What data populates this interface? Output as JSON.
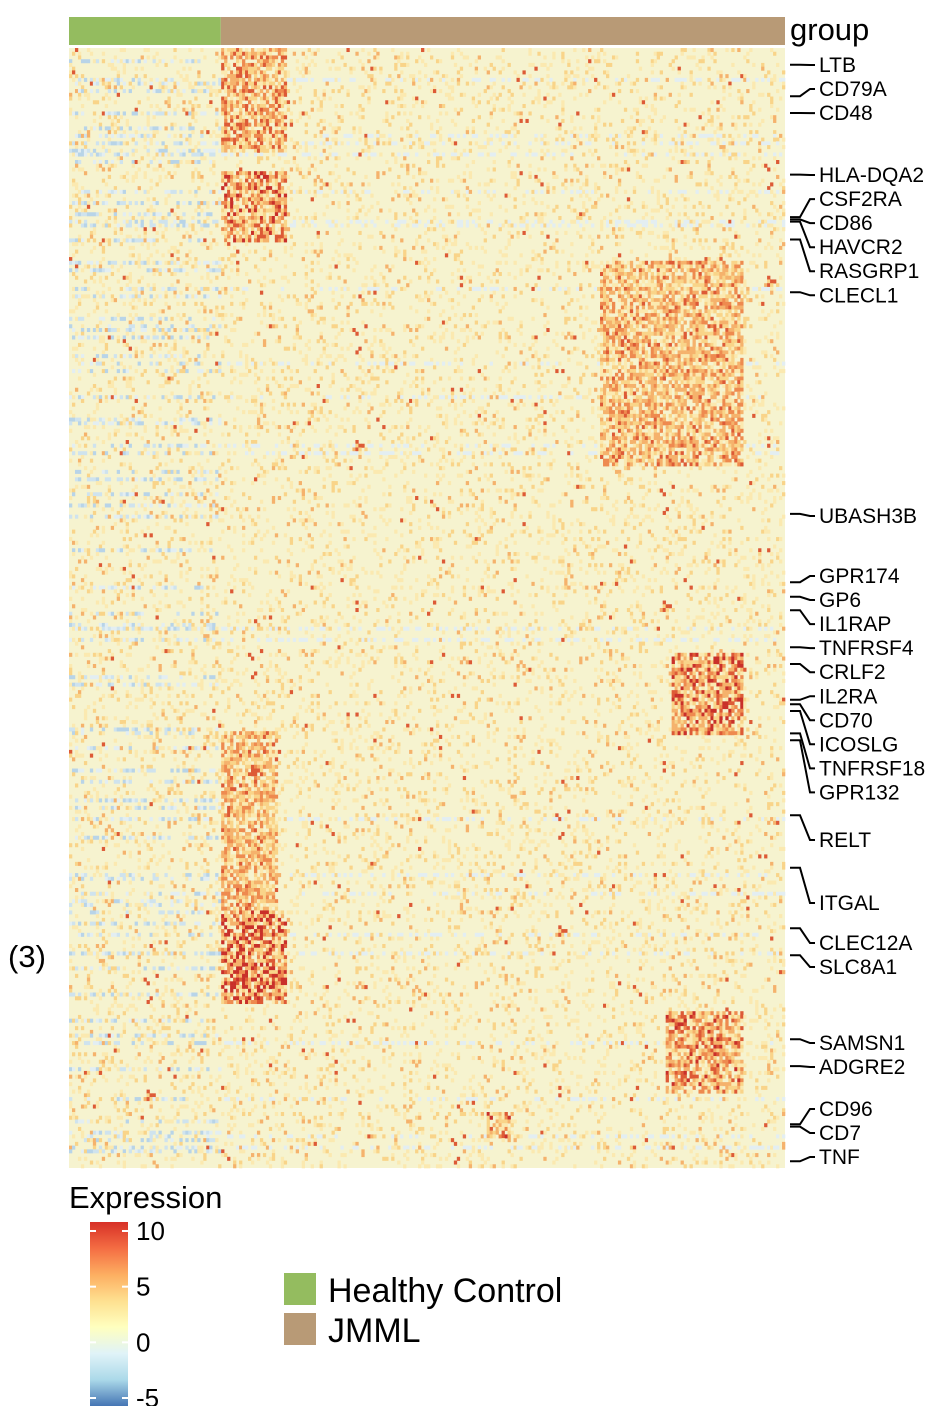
{
  "chart_data": {
    "type": "heatmap",
    "panel_label": "(3)",
    "annotation": {
      "title": "group",
      "segments": [
        {
          "name": "Healthy Control",
          "fraction": 0.212,
          "color": "#94bc5f"
        },
        {
          "name": "JMML",
          "fraction": 0.788,
          "color": "#b89a76"
        }
      ]
    },
    "genes": [
      "LTB",
      "CD79A",
      "CD48",
      "HLA-DQA2",
      "CSF2RA",
      "CD86",
      "HAVCR2",
      "RASGRP1",
      "CLECL1",
      "UBASH3B",
      "GPR174",
      "GP6",
      "IL1RAP",
      "TNFRSF4",
      "CRLF2",
      "IL2RA",
      "CD70",
      "ICOSLG",
      "TNFRSF18",
      "GPR132",
      "RELT",
      "ITGAL",
      "CLEC12A",
      "SLC8A1",
      "SAMSN1",
      "ADGRE2",
      "CD96",
      "CD7",
      "TNF"
    ],
    "gene_row_positions": [
      0.015,
      0.043,
      0.058,
      0.113,
      0.151,
      0.153,
      0.155,
      0.171,
      0.218,
      0.416,
      0.477,
      0.49,
      0.502,
      0.535,
      0.55,
      0.582,
      0.586,
      0.592,
      0.612,
      0.618,
      0.685,
      0.732,
      0.786,
      0.81,
      0.885,
      0.909,
      0.961,
      0.963,
      0.994
    ],
    "legend_title": "Expression",
    "color_scale": {
      "breaks": [
        10,
        5,
        0,
        -5
      ],
      "colors": [
        "#d73027",
        "#f46d43",
        "#fdae61",
        "#fee090",
        "#ffffbf",
        "#e0f3f8",
        "#abd9e9",
        "#4575b4"
      ]
    },
    "group_legend": [
      {
        "label": "Healthy Control",
        "color": "#94bc5f"
      },
      {
        "label": "JMML",
        "color": "#b89a76"
      }
    ],
    "hotspots": [
      {
        "rows": [
          0.0,
          0.09
        ],
        "cols": [
          0.21,
          0.3
        ],
        "intensity": 0.45
      },
      {
        "rows": [
          0.11,
          0.17
        ],
        "cols": [
          0.21,
          0.3
        ],
        "intensity": 0.55
      },
      {
        "rows": [
          0.19,
          0.37
        ],
        "cols": [
          0.74,
          0.94
        ],
        "intensity": 0.35
      },
      {
        "rows": [
          0.54,
          0.61
        ],
        "cols": [
          0.84,
          0.94
        ],
        "intensity": 0.65
      },
      {
        "rows": [
          0.61,
          0.77
        ],
        "cols": [
          0.21,
          0.29
        ],
        "intensity": 0.35
      },
      {
        "rows": [
          0.77,
          0.85
        ],
        "cols": [
          0.21,
          0.3
        ],
        "intensity": 0.8
      },
      {
        "rows": [
          0.86,
          0.93
        ],
        "cols": [
          0.83,
          0.94
        ],
        "intensity": 0.5
      },
      {
        "rows": [
          0.95,
          0.97
        ],
        "cols": [
          0.58,
          0.62
        ],
        "intensity": 0.6
      }
    ]
  }
}
